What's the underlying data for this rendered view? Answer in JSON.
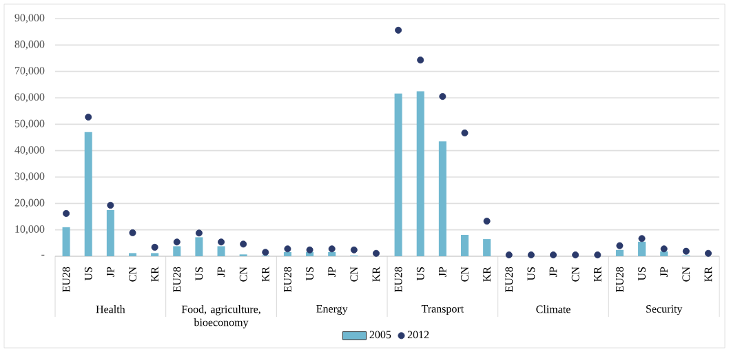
{
  "chart_data": {
    "type": "bar",
    "categories": [
      "EU28",
      "US",
      "JP",
      "CN",
      "KR",
      "EU28",
      "US",
      "JP",
      "CN",
      "KR",
      "EU28",
      "US",
      "JP",
      "CN",
      "KR",
      "EU28",
      "US",
      "JP",
      "CN",
      "KR",
      "EU28",
      "US",
      "JP",
      "CN",
      "KR",
      "EU28",
      "US",
      "JP",
      "CN",
      "KR"
    ],
    "series": [
      {
        "name": "2005",
        "color": "#70b8d0",
        "values": [
          11000,
          47000,
          17500,
          1200,
          1200,
          3800,
          7200,
          3800,
          700,
          300,
          1600,
          1600,
          1600,
          300,
          null,
          61600,
          62500,
          43500,
          8100,
          6500,
          null,
          null,
          null,
          null,
          null,
          2400,
          5500,
          1800,
          300,
          null
        ]
      },
      {
        "name": "2012",
        "type": "scatter",
        "color": "#2b3a6b",
        "values": [
          16200,
          52700,
          19300,
          8900,
          3400,
          5400,
          8800,
          5400,
          4600,
          1500,
          2800,
          2400,
          2800,
          2400,
          1100,
          85600,
          74300,
          60500,
          46700,
          13300,
          500,
          500,
          500,
          500,
          500,
          4000,
          6700,
          2800,
          1900,
          1100
        ]
      }
    ],
    "annotations": [
      "Health",
      "Food, agriculture, bioeconomy",
      "Energy",
      "Transport",
      "Climate",
      "Security"
    ],
    "ylim": [
      0,
      90000
    ],
    "yticks": [
      {
        "value": 0,
        "label": "-"
      },
      {
        "value": 10000,
        "label": "10,000"
      },
      {
        "value": 20000,
        "label": "20,000"
      },
      {
        "value": 30000,
        "label": "30,000"
      },
      {
        "value": 40000,
        "label": "40,000"
      },
      {
        "value": 50000,
        "label": "50,000"
      },
      {
        "value": 60000,
        "label": "60,000"
      },
      {
        "value": 70000,
        "label": "70,000"
      },
      {
        "value": 80000,
        "label": "80,000"
      },
      {
        "value": 90000,
        "label": "90,000"
      }
    ],
    "grid": "y",
    "legend": "bottom",
    "marker": "circle"
  }
}
